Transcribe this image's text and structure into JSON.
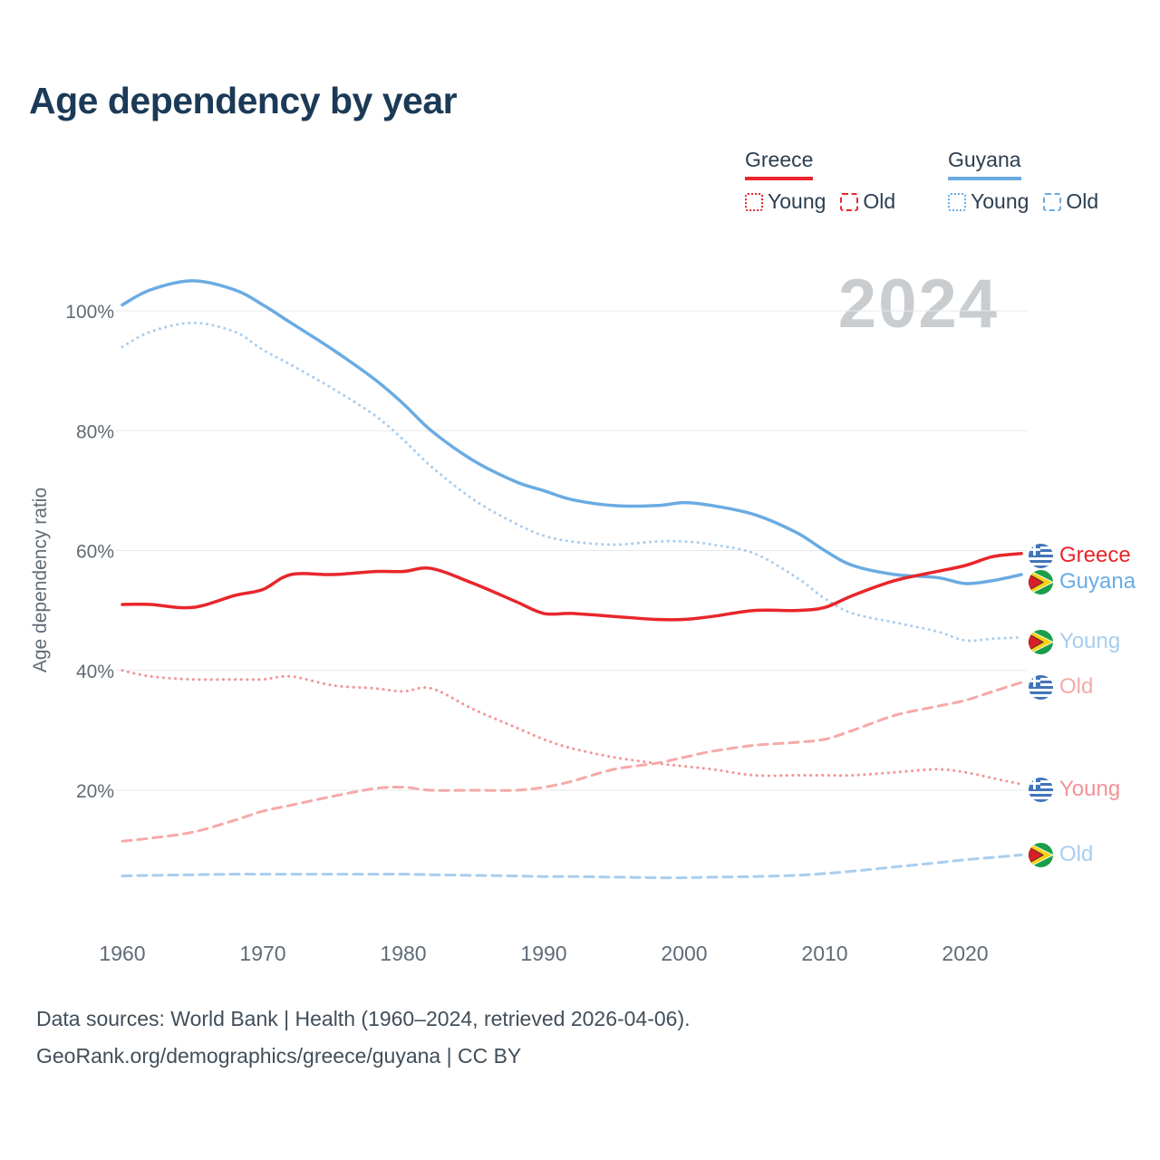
{
  "title": "Age dependency by year",
  "watermark": "2024",
  "y_axis_label": "Age dependency ratio",
  "legend": {
    "greece": {
      "label": "Greece",
      "young_label": "Young",
      "old_label": "Old",
      "color": "#e8262b"
    },
    "guyana": {
      "label": "Guyana",
      "young_label": "Young",
      "old_label": "Old",
      "color": "#6aabe2"
    }
  },
  "footer": {
    "line1": "Data sources: World Bank | Health (1960–2024, retrieved 2026-04-06).",
    "line2": "GeoRank.org/demographics/greece/guyana | CC BY"
  },
  "chart_data": {
    "type": "line",
    "title": "Age dependency by year",
    "ylabel": "Age dependency ratio",
    "xlabel": "",
    "x": [
      1960,
      1962,
      1965,
      1968,
      1970,
      1972,
      1975,
      1978,
      1980,
      1982,
      1985,
      1988,
      1990,
      1992,
      1995,
      1998,
      2000,
      2002,
      2005,
      2008,
      2010,
      2012,
      2015,
      2018,
      2020,
      2022,
      2024
    ],
    "xticks": [
      1960,
      1970,
      1980,
      1990,
      2000,
      2010,
      2020
    ],
    "yticks": [
      20,
      40,
      60,
      80,
      100
    ],
    "ylim": [
      0,
      108
    ],
    "grid": true,
    "legend_position": "top-right",
    "series": [
      {
        "id": "guyana-young",
        "name": "Guyana Young",
        "color": "#a9cdee",
        "style": "dotted",
        "width": 3,
        "end_label": {
          "text": "Young",
          "flag": "guyana",
          "color": "#a9cdee",
          "dy": 5
        },
        "values": [
          94,
          96.5,
          98,
          96.5,
          93.5,
          91,
          87,
          82.5,
          78.5,
          74,
          68.5,
          64.5,
          62.5,
          61.5,
          61,
          61.5,
          61.5,
          61,
          59.5,
          55.5,
          52,
          49.5,
          48,
          46.5,
          45,
          45.3,
          45.5
        ]
      },
      {
        "id": "guyana-old",
        "name": "Guyana Old",
        "color": "#a9cdee",
        "style": "dashed",
        "width": 3,
        "end_label": {
          "text": "Old",
          "flag": "guyana",
          "color": "#a9cdee",
          "dy": 0
        },
        "values": [
          5.7,
          5.8,
          5.9,
          6,
          6,
          6,
          6,
          6,
          6,
          5.9,
          5.8,
          5.7,
          5.6,
          5.6,
          5.5,
          5.4,
          5.4,
          5.5,
          5.6,
          5.8,
          6.1,
          6.5,
          7.2,
          7.9,
          8.4,
          8.8,
          9.2
        ]
      },
      {
        "id": "greece-young",
        "name": "Greece Young",
        "color": "#f29395",
        "style": "dotted",
        "width": 3,
        "end_label": {
          "text": "Young",
          "flag": "greece",
          "color": "#f29395",
          "dy": 6
        },
        "values": [
          40,
          39,
          38.5,
          38.5,
          38.5,
          39,
          37.5,
          37,
          36.5,
          37,
          33.5,
          30.5,
          28.5,
          27,
          25.5,
          24.5,
          24,
          23.5,
          22.5,
          22.5,
          22.5,
          22.5,
          23,
          23.5,
          23,
          22,
          21
        ]
      },
      {
        "id": "greece-old",
        "name": "Greece Old",
        "color": "#f6a9a8",
        "style": "dashed",
        "width": 3,
        "end_label": {
          "text": "Old",
          "flag": "greece",
          "color": "#f6a9a8",
          "dy": 5
        },
        "values": [
          11.5,
          12,
          13,
          15,
          16.5,
          17.5,
          19,
          20.3,
          20.5,
          20,
          20,
          20,
          20.5,
          21.5,
          23.5,
          24.5,
          25.5,
          26.5,
          27.5,
          28,
          28.5,
          30,
          32.5,
          34,
          35,
          36.5,
          38
        ]
      },
      {
        "id": "guyana-total",
        "name": "Guyana",
        "color": "#6aabe2",
        "style": "solid",
        "width": 3.5,
        "end_label": {
          "text": "Guyana",
          "flag": "guyana",
          "color": "#6aabe2",
          "dy": 8
        },
        "values": [
          101,
          103.5,
          105,
          103.5,
          101,
          98,
          93.5,
          88.5,
          84.5,
          80,
          75,
          71.5,
          70,
          68.5,
          67.5,
          67.5,
          68,
          67.5,
          66,
          63,
          60,
          57.5,
          56,
          55.5,
          54.5,
          55,
          56
        ]
      },
      {
        "id": "greece-total",
        "name": "Greece",
        "color": "#e8262b",
        "style": "solid",
        "width": 3.5,
        "end_label": {
          "text": "Greece",
          "flag": "greece",
          "color": "#e8262b",
          "dy": 2
        },
        "values": [
          51,
          51,
          50.5,
          52.5,
          53.5,
          56,
          56,
          56.5,
          56.5,
          57,
          54.5,
          51.5,
          49.5,
          49.5,
          49,
          48.5,
          48.5,
          49,
          50,
          50,
          50.5,
          52.5,
          55,
          56.5,
          57.5,
          59,
          59.5
        ]
      }
    ]
  }
}
